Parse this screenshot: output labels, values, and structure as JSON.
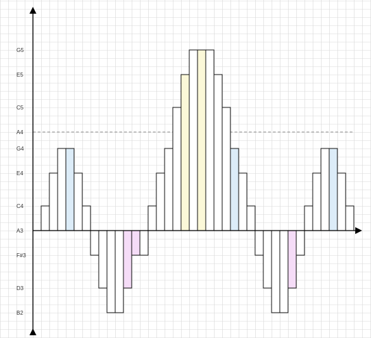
{
  "colors": {
    "grid": "#d9d9d9",
    "bar_stroke": "#111111",
    "white": "#ffffff",
    "blue": "#dcecf8",
    "yellow": "#fbf8d8",
    "pink": "#f5dcf7",
    "axis": "#000000",
    "reference_line": "#8a8a8a"
  },
  "y_axis_labels": [
    {
      "text": "G5",
      "semitone": 10
    },
    {
      "text": "E5",
      "semitone": 7
    },
    {
      "text": "C5",
      "semitone": 3
    },
    {
      "text": "A4",
      "semitone": 0
    },
    {
      "text": "G4",
      "semitone": -2
    },
    {
      "text": "E4",
      "semitone": -5
    },
    {
      "text": "C4",
      "semitone": -9
    },
    {
      "text": "A3",
      "semitone": -12
    },
    {
      "text": "F#3",
      "semitone": -15
    },
    {
      "text": "D3",
      "semitone": -19
    },
    {
      "text": "B2",
      "semitone": -22
    }
  ],
  "baseline_semitone": -12,
  "reference_line_semitone": 0,
  "bars": [
    {
      "semitone": -9,
      "fill": "white"
    },
    {
      "semitone": -5,
      "fill": "white"
    },
    {
      "semitone": -2,
      "fill": "white"
    },
    {
      "semitone": -2,
      "fill": "blue"
    },
    {
      "semitone": -5,
      "fill": "white"
    },
    {
      "semitone": -9,
      "fill": "white"
    },
    {
      "semitone": -15,
      "fill": "white"
    },
    {
      "semitone": -19,
      "fill": "white"
    },
    {
      "semitone": -22,
      "fill": "white"
    },
    {
      "semitone": -22,
      "fill": "white"
    },
    {
      "semitone": -19,
      "fill": "pink"
    },
    {
      "semitone": -15,
      "fill": "pink"
    },
    {
      "semitone": -15,
      "fill": "white"
    },
    {
      "semitone": -9,
      "fill": "white"
    },
    {
      "semitone": -5,
      "fill": "white"
    },
    {
      "semitone": -2,
      "fill": "white"
    },
    {
      "semitone": 3,
      "fill": "white"
    },
    {
      "semitone": 7,
      "fill": "yellow"
    },
    {
      "semitone": 10,
      "fill": "white"
    },
    {
      "semitone": 10,
      "fill": "yellow"
    },
    {
      "semitone": 10,
      "fill": "white"
    },
    {
      "semitone": 7,
      "fill": "white"
    },
    {
      "semitone": 3,
      "fill": "white"
    },
    {
      "semitone": -2,
      "fill": "blue"
    },
    {
      "semitone": -5,
      "fill": "white"
    },
    {
      "semitone": -9,
      "fill": "white"
    },
    {
      "semitone": -15,
      "fill": "white"
    },
    {
      "semitone": -19,
      "fill": "white"
    },
    {
      "semitone": -22,
      "fill": "white"
    },
    {
      "semitone": -22,
      "fill": "white"
    },
    {
      "semitone": -19,
      "fill": "pink"
    },
    {
      "semitone": -15,
      "fill": "white"
    },
    {
      "semitone": -9,
      "fill": "white"
    },
    {
      "semitone": -5,
      "fill": "white"
    },
    {
      "semitone": -2,
      "fill": "white"
    },
    {
      "semitone": -2,
      "fill": "blue"
    },
    {
      "semitone": -5,
      "fill": "white"
    },
    {
      "semitone": -9,
      "fill": "white"
    }
  ]
}
